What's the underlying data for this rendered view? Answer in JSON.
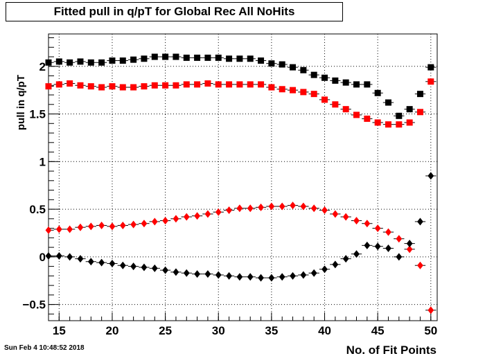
{
  "title": "Fitted pull in q/pT for Global Rec All NoHits",
  "timestamp": "Sun Feb  4 10:48:52 2018",
  "chart_data": {
    "type": "scatter",
    "title": "Fitted pull in q/pT for Global Rec All NoHits",
    "xlabel": "No. of Fit Points",
    "ylabel": "pull in q/pT",
    "xlim": [
      14,
      50.6
    ],
    "ylim": [
      -0.67,
      2.34
    ],
    "x_ticks": [
      "15",
      "20",
      "25",
      "30",
      "35",
      "40",
      "45",
      "50"
    ],
    "y_ticks": [
      "-0.5",
      "0",
      "0.5",
      "1",
      "1.5",
      "2"
    ],
    "grid": true,
    "series": [
      {
        "marker": "square",
        "color": "#000000",
        "x": [
          14,
          15,
          16,
          17,
          18,
          19,
          20,
          21,
          22,
          23,
          24,
          25,
          26,
          27,
          28,
          29,
          30,
          31,
          32,
          33,
          34,
          35,
          36,
          37,
          38,
          39,
          40,
          41,
          42,
          43,
          44,
          45,
          46,
          47,
          48,
          49,
          50
        ],
        "y": [
          2.04,
          2.05,
          2.04,
          2.05,
          2.04,
          2.04,
          2.06,
          2.06,
          2.07,
          2.08,
          2.1,
          2.1,
          2.1,
          2.09,
          2.09,
          2.09,
          2.09,
          2.08,
          2.08,
          2.08,
          2.06,
          2.03,
          2.02,
          1.99,
          1.96,
          1.91,
          1.88,
          1.85,
          1.83,
          1.81,
          1.81,
          1.72,
          1.62,
          1.48,
          1.55,
          1.71,
          1.99
        ]
      },
      {
        "marker": "square",
        "color": "#ff0000",
        "x": [
          14,
          15,
          16,
          17,
          18,
          19,
          20,
          21,
          22,
          23,
          24,
          25,
          26,
          27,
          28,
          29,
          30,
          31,
          32,
          33,
          34,
          35,
          36,
          37,
          38,
          39,
          40,
          41,
          42,
          43,
          44,
          45,
          46,
          47,
          48,
          49,
          50
        ],
        "y": [
          1.79,
          1.81,
          1.82,
          1.8,
          1.79,
          1.78,
          1.79,
          1.78,
          1.78,
          1.79,
          1.8,
          1.8,
          1.8,
          1.81,
          1.81,
          1.82,
          1.81,
          1.81,
          1.81,
          1.81,
          1.81,
          1.78,
          1.76,
          1.75,
          1.73,
          1.71,
          1.65,
          1.6,
          1.55,
          1.49,
          1.45,
          1.41,
          1.39,
          1.39,
          1.41,
          1.52,
          1.84
        ]
      },
      {
        "marker": "diamond",
        "color": "#ff0000",
        "x": [
          14,
          15,
          16,
          17,
          18,
          19,
          20,
          21,
          22,
          23,
          24,
          25,
          26,
          27,
          28,
          29,
          30,
          31,
          32,
          33,
          34,
          35,
          36,
          37,
          38,
          39,
          40,
          41,
          42,
          43,
          44,
          45,
          46,
          47,
          48,
          49,
          50
        ],
        "y": [
          0.28,
          0.29,
          0.29,
          0.31,
          0.32,
          0.33,
          0.32,
          0.33,
          0.34,
          0.35,
          0.37,
          0.38,
          0.4,
          0.42,
          0.43,
          0.45,
          0.47,
          0.49,
          0.51,
          0.51,
          0.52,
          0.53,
          0.53,
          0.54,
          0.53,
          0.51,
          0.49,
          0.45,
          0.42,
          0.38,
          0.35,
          0.3,
          0.26,
          0.19,
          0.08,
          -0.09,
          -0.56
        ]
      },
      {
        "marker": "diamond",
        "color": "#000000",
        "x": [
          14,
          15,
          16,
          17,
          18,
          19,
          20,
          21,
          22,
          23,
          24,
          25,
          26,
          27,
          28,
          29,
          30,
          31,
          32,
          33,
          34,
          35,
          36,
          37,
          38,
          39,
          40,
          41,
          42,
          43,
          44,
          45,
          46,
          47,
          48,
          49,
          50
        ],
        "y": [
          0.01,
          0.01,
          0.0,
          -0.02,
          -0.05,
          -0.06,
          -0.07,
          -0.09,
          -0.1,
          -0.11,
          -0.12,
          -0.14,
          -0.16,
          -0.17,
          -0.18,
          -0.18,
          -0.19,
          -0.2,
          -0.21,
          -0.21,
          -0.22,
          -0.22,
          -0.21,
          -0.2,
          -0.19,
          -0.17,
          -0.13,
          -0.08,
          -0.02,
          0.03,
          0.12,
          0.11,
          0.09,
          0.0,
          0.14,
          0.37,
          0.85
        ]
      }
    ]
  }
}
